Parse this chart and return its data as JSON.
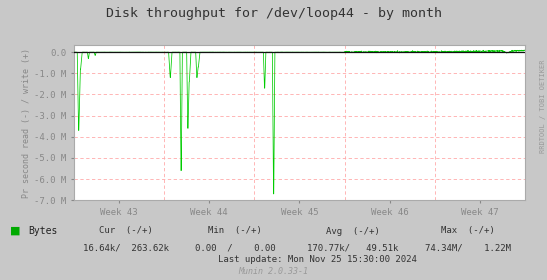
{
  "title": "Disk throughput for /dev/loop44 - by month",
  "ylabel": "Pr second read (-) / write (+)",
  "x_labels": [
    "Week 43",
    "Week 44",
    "Week 45",
    "Week 46",
    "Week 47"
  ],
  "ylim": [
    -7000000,
    350000
  ],
  "yticks": [
    0,
    -1000000,
    -2000000,
    -3000000,
    -4000000,
    -5000000,
    -6000000,
    -7000000
  ],
  "ytick_labels": [
    "0.0",
    "-1.0 M",
    "-2.0 M",
    "-3.0 M",
    "-4.0 M",
    "-5.0 M",
    "-6.0 M",
    "-7.0 M"
  ],
  "bg_color": "#c8c8c8",
  "plot_bg_color": "#ffffff",
  "grid_h_color": "#ffaaaa",
  "grid_v_color": "#ffaaaa",
  "line_color": "#00cc00",
  "title_color": "#333333",
  "axis_color": "#aaaaaa",
  "tick_color": "#888888",
  "legend_color": "#00aa00",
  "watermark": "RRDTOOL / TOBI OETIKER",
  "n_points": 2000,
  "week_boundaries": [
    0,
    400,
    800,
    1200,
    1600,
    2000
  ]
}
